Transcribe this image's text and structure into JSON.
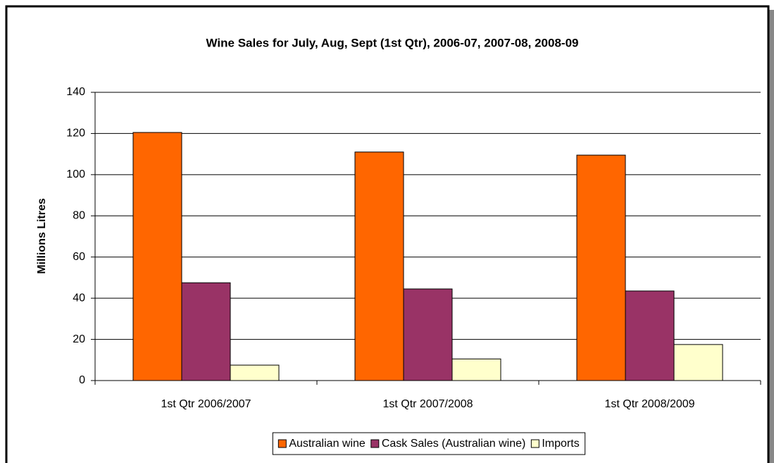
{
  "chart_data": {
    "type": "bar",
    "title": "Wine Sales for July, Aug, Sept (1st Qtr),  2006-07, 2007-08, 2008-09",
    "y_label": "Millions Litres",
    "categories": [
      "1st Qtr 2006/2007",
      "1st Qtr 2007/2008",
      "1st Qtr 2008/2009"
    ],
    "series": [
      {
        "name": "Australian wine",
        "color": "#ff6600",
        "values": [
          120.5,
          111,
          109.5
        ]
      },
      {
        "name": "Cask Sales (Australian wine)",
        "color": "#993366",
        "values": [
          47.5,
          44.5,
          43.5
        ]
      },
      {
        "name": "Imports",
        "color": "#ffffcc",
        "values": [
          7.5,
          10.5,
          17.5
        ]
      }
    ],
    "ylim": [
      0,
      140
    ],
    "yticks": [
      0,
      20,
      40,
      60,
      80,
      100,
      120,
      140
    ],
    "grid": true,
    "legend": "bottom"
  }
}
